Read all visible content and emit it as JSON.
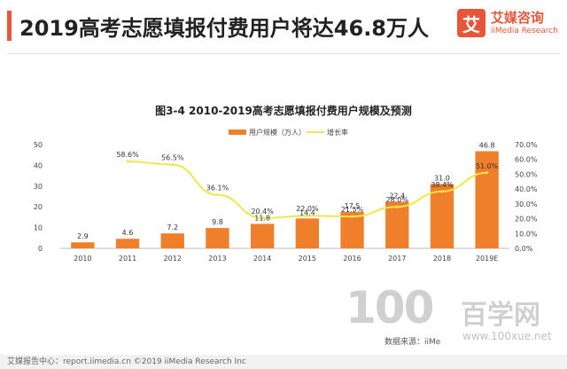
{
  "header": {
    "title": "2019高考志愿填报付费用户将达46.8万人"
  },
  "logo": {
    "mark": "艾",
    "cn": "艾媒咨询",
    "en": "iiMedia Research"
  },
  "watermark": {
    "big": "100",
    "cn": "百学网",
    "url": "www.100xue.net"
  },
  "source_note": "数据来源：iiMe",
  "footer": {
    "text": "艾媒报告中心：report.iimedia.cn  ©2019  iiMedia Research Inc"
  },
  "colors": {
    "bar": "#f07f2c",
    "line": "#f0e64c",
    "accent": "#e8563a"
  },
  "chart_data": {
    "type": "bar",
    "title": "图3-4 2010-2019高考志愿填报付费用户规模及预测",
    "categories": [
      "2010",
      "2011",
      "2012",
      "2013",
      "2014",
      "2015",
      "2016",
      "2017",
      "2018",
      "2019E"
    ],
    "series": [
      {
        "name": "用户规模（万人）",
        "type": "bar",
        "axis": "left",
        "values": [
          2.9,
          4.6,
          7.2,
          9.8,
          11.8,
          14.4,
          17.5,
          22.4,
          31.0,
          46.8
        ],
        "labels": [
          "2.9",
          "4.6",
          "7.2",
          "9.8",
          "11.8",
          "14.4",
          "17.5",
          "22.4",
          "31.0",
          "46.8"
        ]
      },
      {
        "name": "增长率",
        "type": "line",
        "axis": "right",
        "values": [
          null,
          58.6,
          56.5,
          36.1,
          20.4,
          22.0,
          21.5,
          28.0,
          38.4,
          51.0
        ],
        "labels": [
          "",
          "58.6%",
          "56.5%",
          "36.1%",
          "20.4%",
          "22.0%",
          "21.5%",
          "28.0%",
          "38.4%",
          "51.0%"
        ]
      }
    ],
    "y_left": {
      "ylim": [
        0,
        50
      ],
      "ticks": [
        "0",
        "10",
        "20",
        "30",
        "40",
        "50"
      ]
    },
    "y_right": {
      "ylim": [
        0,
        70
      ],
      "ticks": [
        "0.0%",
        "10.0%",
        "20.0%",
        "30.0%",
        "40.0%",
        "50.0%",
        "60.0%",
        "70.0%"
      ]
    },
    "legend_position": "top-center",
    "grid": false
  }
}
